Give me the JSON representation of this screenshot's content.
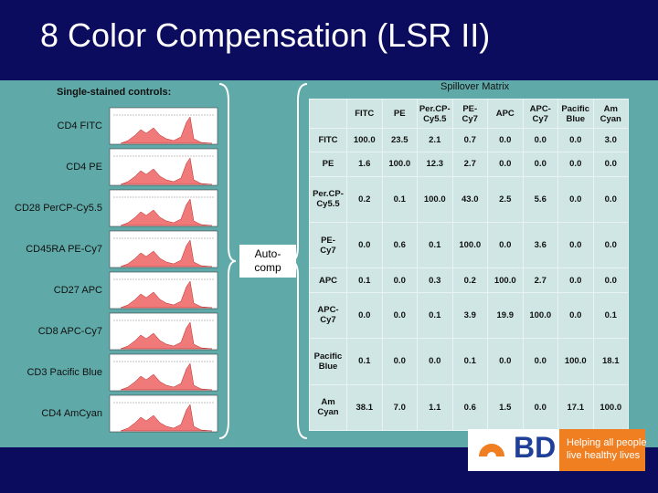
{
  "header": {
    "title": "8 Color Compensation (LSR II)"
  },
  "controls": {
    "heading": "Single-stained controls:",
    "labels": [
      "CD4 FITC",
      "CD4 PE",
      "CD28 PerCP-Cy5.5",
      "CD45RA PE-Cy7",
      "CD27 APC",
      "CD8 APC-Cy7",
      "CD3 Pacific Blue",
      "CD4 AmCyan"
    ]
  },
  "autocomp": "Auto-\ncomp",
  "table": {
    "caption": "Spillover Matrix",
    "columns": [
      "FITC",
      "PE",
      "Per.CP-\nCy5.5",
      "PE-\nCy7",
      "APC",
      "APC-\nCy7",
      "Pacific\nBlue",
      "Am\nCyan"
    ],
    "row_headers": [
      "FITC",
      "PE",
      "Per.CP-\nCy5.5",
      "PE-\nCy7",
      "APC",
      "APC-\nCy7",
      "Pacific\nBlue",
      "Am\nCyan"
    ],
    "rows": [
      [
        "100.0",
        "23.5",
        "2.1",
        "0.7",
        "0.0",
        "0.0",
        "0.0",
        "3.0"
      ],
      [
        "1.6",
        "100.0",
        "12.3",
        "2.7",
        "0.0",
        "0.0",
        "0.0",
        "0.0"
      ],
      [
        "0.2",
        "0.1",
        "100.0",
        "43.0",
        "2.5",
        "5.6",
        "0.0",
        "0.0"
      ],
      [
        "0.0",
        "0.6",
        "0.1",
        "100.0",
        "0.0",
        "3.6",
        "0.0",
        "0.0"
      ],
      [
        "0.1",
        "0.0",
        "0.3",
        "0.2",
        "100.0",
        "2.7",
        "0.0",
        "0.0"
      ],
      [
        "0.0",
        "0.0",
        "0.1",
        "3.9",
        "19.9",
        "100.0",
        "0.0",
        "0.1"
      ],
      [
        "0.1",
        "0.0",
        "0.0",
        "0.1",
        "0.0",
        "0.0",
        "100.0",
        "18.1"
      ],
      [
        "38.1",
        "7.0",
        "1.1",
        "0.6",
        "1.5",
        "0.0",
        "17.1",
        "100.0"
      ]
    ]
  },
  "footer": {
    "logo": "BD",
    "tagline": "Helping all people\nlive healthy lives"
  }
}
